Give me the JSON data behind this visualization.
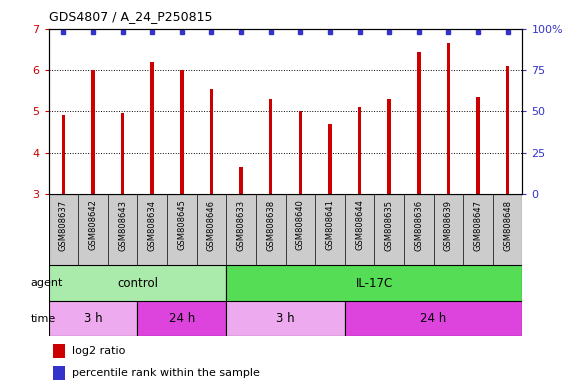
{
  "title": "GDS4807 / A_24_P250815",
  "samples": [
    "GSM808637",
    "GSM808642",
    "GSM808643",
    "GSM808634",
    "GSM808645",
    "GSM808646",
    "GSM808633",
    "GSM808638",
    "GSM808640",
    "GSM808641",
    "GSM808644",
    "GSM808635",
    "GSM808636",
    "GSM808639",
    "GSM808647",
    "GSM808648"
  ],
  "log2_values": [
    4.9,
    6.0,
    4.95,
    6.2,
    6.0,
    5.55,
    3.65,
    5.3,
    5.0,
    4.7,
    5.1,
    5.3,
    6.45,
    6.65,
    5.35,
    6.1
  ],
  "bar_color": "#cc0000",
  "dot_color": "#3333cc",
  "ylim": [
    3,
    7
  ],
  "y_right_ticks": [
    0,
    25,
    50,
    75,
    100
  ],
  "y_right_labels": [
    "0",
    "25",
    "50",
    "75",
    "100%"
  ],
  "y_left_ticks": [
    3,
    4,
    5,
    6,
    7
  ],
  "groups": [
    {
      "label": "control",
      "start": 0,
      "end": 6,
      "color": "#aaeaaa"
    },
    {
      "label": "IL-17C",
      "start": 6,
      "end": 16,
      "color": "#55dd55"
    }
  ],
  "time_groups": [
    {
      "label": "3 h",
      "start": 0,
      "end": 3,
      "color": "#eeaaee"
    },
    {
      "label": "24 h",
      "start": 3,
      "end": 6,
      "color": "#dd44dd"
    },
    {
      "label": "3 h",
      "start": 6,
      "end": 10,
      "color": "#eeaaee"
    },
    {
      "label": "24 h",
      "start": 10,
      "end": 16,
      "color": "#dd44dd"
    }
  ],
  "agent_label": "agent",
  "time_label": "time",
  "legend_bar": "log2 ratio",
  "legend_dot": "percentile rank within the sample",
  "tick_label_color_left": "#cc0000",
  "tick_label_color_right": "#3333cc",
  "sample_box_color": "#cccccc",
  "bar_width": 0.12
}
